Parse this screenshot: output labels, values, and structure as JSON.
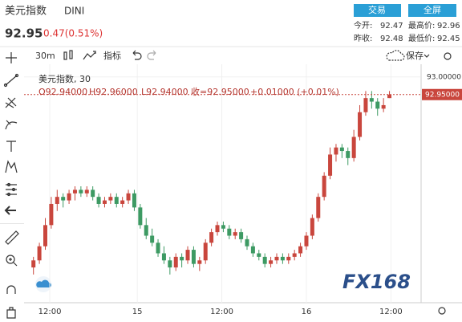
{
  "header": {
    "name": "美元指数",
    "symbol": "DINI",
    "price": "92.95",
    "change": "0.47(0.51%)",
    "buttons": [
      "交易",
      "全屏"
    ],
    "stats": [
      [
        "今开:",
        "92.47",
        "最高价:",
        "92.96"
      ],
      [
        "昨收:",
        "92.48",
        "最低价:",
        "92.45"
      ]
    ]
  },
  "toolbar": {
    "interval": "30m",
    "indicators": "指标",
    "save": "保存"
  },
  "chart_data": {
    "type": "candlestick",
    "legend_title": "美元指数, 30",
    "ohlc_labels": [
      "O92.94000",
      "H92.96000",
      "L92.94000",
      "收=92.95000",
      "+0.01000 (+0.01%)"
    ],
    "up_color": "#c9463d",
    "down_color": "#3d9a63",
    "x": [
      0,
      1,
      2,
      3,
      4,
      5,
      6,
      7,
      8,
      9,
      10,
      11,
      12,
      13,
      14,
      15,
      16,
      17,
      18,
      19,
      20,
      21,
      22,
      23,
      24,
      25,
      26,
      27,
      28,
      29,
      30,
      31,
      32,
      33,
      34,
      35,
      36,
      37,
      38,
      39,
      40,
      41,
      42,
      43,
      44,
      45,
      46,
      47,
      48,
      49,
      50,
      51,
      52,
      53,
      54,
      55,
      56,
      57,
      58,
      59,
      60
    ],
    "candles": [
      [
        92.46,
        92.49,
        92.44,
        92.48
      ],
      [
        92.48,
        92.53,
        92.47,
        92.52
      ],
      [
        92.52,
        92.6,
        92.51,
        92.58
      ],
      [
        92.58,
        92.66,
        92.57,
        92.64
      ],
      [
        92.64,
        92.68,
        92.62,
        92.66
      ],
      [
        92.66,
        92.67,
        92.63,
        92.65
      ],
      [
        92.65,
        92.68,
        92.64,
        92.67
      ],
      [
        92.67,
        92.69,
        92.65,
        92.68
      ],
      [
        92.68,
        92.69,
        92.66,
        92.67
      ],
      [
        92.67,
        92.69,
        92.66,
        92.68
      ],
      [
        92.68,
        92.69,
        92.65,
        92.66
      ],
      [
        92.66,
        92.67,
        92.63,
        92.64
      ],
      [
        92.64,
        92.66,
        92.63,
        92.65
      ],
      [
        92.65,
        92.67,
        92.64,
        92.66
      ],
      [
        92.66,
        92.67,
        92.63,
        92.64
      ],
      [
        92.64,
        92.66,
        92.63,
        92.65
      ],
      [
        92.65,
        92.68,
        92.64,
        92.67
      ],
      [
        92.67,
        92.68,
        92.62,
        92.63
      ],
      [
        92.63,
        92.64,
        92.57,
        92.58
      ],
      [
        92.58,
        92.6,
        92.54,
        92.55
      ],
      [
        92.55,
        92.57,
        92.52,
        92.53
      ],
      [
        92.53,
        92.54,
        92.49,
        92.5
      ],
      [
        92.5,
        92.52,
        92.47,
        92.48
      ],
      [
        92.48,
        92.49,
        92.44,
        92.46
      ],
      [
        92.46,
        92.5,
        92.45,
        92.49
      ],
      [
        92.49,
        92.5,
        92.46,
        92.48
      ],
      [
        92.48,
        92.52,
        92.47,
        92.51
      ],
      [
        92.51,
        92.52,
        92.46,
        92.47
      ],
      [
        92.47,
        92.49,
        92.45,
        92.48
      ],
      [
        92.48,
        92.54,
        92.47,
        92.53
      ],
      [
        92.53,
        92.57,
        92.52,
        92.56
      ],
      [
        92.56,
        92.59,
        92.55,
        92.58
      ],
      [
        92.58,
        92.59,
        92.56,
        92.57
      ],
      [
        92.57,
        92.58,
        92.54,
        92.55
      ],
      [
        92.55,
        92.57,
        92.54,
        92.56
      ],
      [
        92.56,
        92.57,
        92.53,
        92.54
      ],
      [
        92.54,
        92.55,
        92.51,
        92.52
      ],
      [
        92.52,
        92.53,
        92.49,
        92.5
      ],
      [
        92.5,
        92.51,
        92.48,
        92.49
      ],
      [
        92.49,
        92.5,
        92.46,
        92.47
      ],
      [
        92.47,
        92.49,
        92.46,
        92.48
      ],
      [
        92.48,
        92.5,
        92.47,
        92.49
      ],
      [
        92.49,
        92.5,
        92.47,
        92.48
      ],
      [
        92.48,
        92.5,
        92.47,
        92.49
      ],
      [
        92.49,
        92.51,
        92.48,
        92.5
      ],
      [
        92.5,
        92.53,
        92.49,
        92.52
      ],
      [
        92.52,
        92.56,
        92.51,
        92.55
      ],
      [
        92.55,
        92.61,
        92.54,
        92.6
      ],
      [
        92.6,
        92.67,
        92.59,
        92.66
      ],
      [
        92.66,
        92.73,
        92.65,
        92.72
      ],
      [
        92.72,
        92.8,
        92.71,
        92.78
      ],
      [
        92.78,
        92.81,
        92.76,
        92.8
      ],
      [
        92.8,
        92.81,
        92.77,
        92.79
      ],
      [
        92.79,
        92.8,
        92.75,
        92.77
      ],
      [
        92.77,
        92.85,
        92.76,
        92.83
      ],
      [
        92.83,
        92.92,
        92.82,
        92.9
      ],
      [
        92.9,
        92.96,
        92.89,
        92.94
      ],
      [
        92.94,
        92.96,
        92.91,
        92.93
      ],
      [
        92.93,
        92.94,
        92.89,
        92.91
      ],
      [
        92.91,
        92.94,
        92.9,
        92.92
      ],
      [
        92.94,
        92.96,
        92.94,
        92.95
      ]
    ],
    "xlim": [
      -0.5,
      65.2
    ],
    "ylim": [
      92.36,
      93.02
    ],
    "xticks": [
      {
        "value": 2.75,
        "label": "12:00"
      },
      {
        "value": 17.5,
        "label": "15"
      },
      {
        "value": 31.75,
        "label": "12:00"
      },
      {
        "value": 46,
        "label": "16"
      },
      {
        "value": 60.25,
        "label": "12:00"
      }
    ],
    "yticks": [
      {
        "value": 93,
        "label": "93.00000"
      }
    ],
    "last_price": 92.95,
    "last_price_label": "92.95000",
    "grid": true
  },
  "watermark": "FX168"
}
